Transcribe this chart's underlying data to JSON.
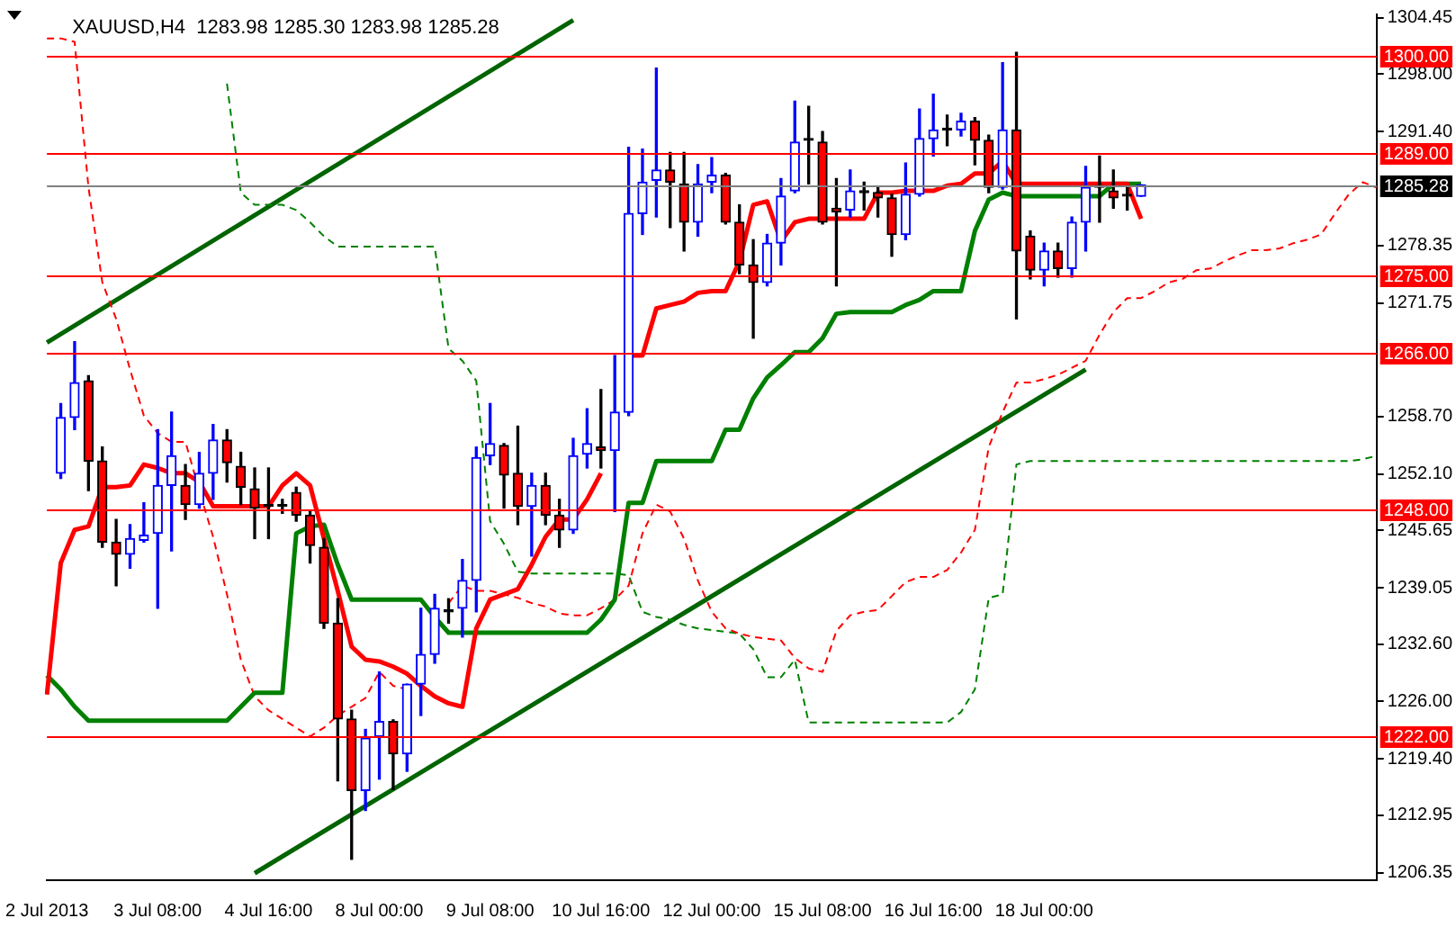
{
  "chart_data": {
    "type": "candlestick",
    "title": "XAUUSD,H4  1283.98 1285.30 1283.98 1285.28",
    "categories": [
      "2 Jul 2013",
      null,
      null,
      null,
      null,
      null,
      null,
      null,
      "3 Jul 08:00",
      null,
      null,
      null,
      null,
      null,
      null,
      null,
      "4 Jul 16:00",
      null,
      null,
      null,
      null,
      null,
      null,
      null,
      "8 Jul 00:00",
      null,
      null,
      null,
      null,
      null,
      null,
      null,
      "9 Jul 08:00",
      null,
      null,
      null,
      null,
      null,
      null,
      null,
      "10 Jul 16:00",
      null,
      null,
      null,
      null,
      null,
      null,
      null,
      "12 Jul 00:00",
      null,
      null,
      null,
      null,
      null,
      null,
      null,
      "15 Jul 08:00",
      null,
      null,
      null,
      null,
      null,
      null,
      null,
      "16 Jul 16:00",
      null,
      null,
      null,
      null,
      null,
      null,
      null,
      "18 Jul 00:00",
      null,
      null,
      null,
      null,
      null,
      null,
      null,
      null,
      null,
      null,
      null,
      null,
      null,
      null,
      null,
      null,
      null,
      null,
      null,
      null,
      null,
      null,
      null,
      null
    ],
    "ohlc": [
      null,
      [
        1252.2,
        1260.2,
        1251.6,
        1258.6
      ],
      [
        1258.6,
        1267.3,
        1257.2,
        1262.6
      ],
      [
        1262.8,
        1263.4,
        1250.2,
        1253.6
      ],
      [
        1253.6,
        1255.2,
        1243.7,
        1244.3
      ],
      [
        1244.3,
        1246.9,
        1239.3,
        1242.9
      ],
      [
        1242.9,
        1246.3,
        1241.3,
        1244.7
      ],
      [
        1244.5,
        1248.8,
        1244.3,
        1245.1
      ],
      [
        1245.3,
        1257.2,
        1236.7,
        1250.8
      ],
      [
        1250.8,
        1259.2,
        1243.3,
        1254.2
      ],
      [
        1250.8,
        1253.2,
        1246.9,
        1248.6
      ],
      [
        1248.6,
        1254.6,
        1248.2,
        1252.2
      ],
      [
        1252.2,
        1257.8,
        1249.2,
        1256.0
      ],
      [
        1256.0,
        1257.2,
        1251.2,
        1253.4
      ],
      [
        1253.0,
        1254.6,
        1248.6,
        1250.6
      ],
      [
        1250.4,
        1252.8,
        1244.7,
        1248.2
      ],
      [
        1248.4,
        1252.8,
        1244.7,
        1248.4
      ],
      [
        1248.4,
        1249.2,
        1247.6,
        1248.4
      ],
      [
        1250.0,
        1250.6,
        1246.7,
        1247.4
      ],
      [
        1247.4,
        1247.8,
        1241.9,
        1243.9
      ],
      [
        1243.7,
        1244.7,
        1234.4,
        1235.0
      ],
      [
        1235.0,
        1237.8,
        1216.9,
        1224.0
      ],
      [
        1224.0,
        1225.0,
        1207.9,
        1215.8
      ],
      [
        1215.8,
        1222.8,
        1213.5,
        1221.8
      ],
      [
        1222.0,
        1229.4,
        1217.1,
        1223.7
      ],
      [
        1223.7,
        1223.9,
        1215.9,
        1220.0
      ],
      [
        1220.0,
        1228.0,
        1218.0,
        1228.0
      ],
      [
        1228.0,
        1236.7,
        1224.4,
        1231.4
      ],
      [
        1231.4,
        1238.3,
        1230.4,
        1236.7
      ],
      [
        1236.3,
        1237.8,
        1235.0,
        1236.3
      ],
      [
        1236.7,
        1242.3,
        1233.4,
        1239.9
      ],
      [
        1239.9,
        1255.2,
        1236.3,
        1254.0
      ],
      [
        1254.2,
        1260.2,
        1253.2,
        1255.6
      ],
      [
        1255.4,
        1255.6,
        1248.2,
        1252.0
      ],
      [
        1252.2,
        1257.6,
        1246.3,
        1248.4
      ],
      [
        1248.4,
        1252.2,
        1242.7,
        1250.8
      ],
      [
        1250.8,
        1252.2,
        1246.3,
        1247.4
      ],
      [
        1247.4,
        1249.2,
        1243.7,
        1245.7
      ],
      [
        1245.7,
        1256.2,
        1245.3,
        1254.2
      ],
      [
        1254.4,
        1259.6,
        1252.8,
        1255.6
      ],
      [
        1255.2,
        1261.8,
        1252.8,
        1254.8
      ],
      [
        1254.8,
        1265.7,
        1247.8,
        1259.2
      ],
      [
        1259.2,
        1289.6,
        1258.8,
        1282.0
      ],
      [
        1282.0,
        1289.4,
        1279.6,
        1285.6
      ],
      [
        1285.8,
        1298.7,
        1281.6,
        1287.0
      ],
      [
        1287.0,
        1289.0,
        1280.4,
        1285.6
      ],
      [
        1285.4,
        1289.0,
        1277.7,
        1281.0
      ],
      [
        1281.0,
        1287.6,
        1279.4,
        1285.4
      ],
      [
        1285.6,
        1288.4,
        1284.4,
        1286.4
      ],
      [
        1286.4,
        1286.6,
        1280.8,
        1281.0
      ],
      [
        1281.0,
        1283.0,
        1275.1,
        1276.1
      ],
      [
        1276.1,
        1279.0,
        1267.7,
        1274.1
      ],
      [
        1274.1,
        1279.6,
        1273.7,
        1278.6
      ],
      [
        1278.6,
        1286.0,
        1276.1,
        1284.0
      ],
      [
        1284.6,
        1294.9,
        1284.4,
        1290.2
      ],
      [
        1290.4,
        1294.3,
        1285.4,
        1290.4
      ],
      [
        1290.2,
        1291.4,
        1280.8,
        1281.0
      ],
      [
        1282.6,
        1286.0,
        1273.7,
        1282.2
      ],
      [
        1282.4,
        1287.0,
        1281.6,
        1284.6
      ],
      [
        1284.4,
        1285.6,
        1282.4,
        1284.4
      ],
      [
        1284.4,
        1285.0,
        1281.6,
        1283.8
      ],
      [
        1283.8,
        1284.2,
        1277.1,
        1279.6
      ],
      [
        1279.6,
        1287.8,
        1279.0,
        1284.2
      ],
      [
        1284.2,
        1294.0,
        1284.0,
        1290.6
      ],
      [
        1290.6,
        1295.7,
        1288.6,
        1291.6
      ],
      [
        1291.6,
        1293.3,
        1289.8,
        1291.6
      ],
      [
        1291.6,
        1293.5,
        1290.9,
        1292.6
      ],
      [
        1292.6,
        1293.0,
        1287.6,
        1290.4
      ],
      [
        1290.4,
        1291.0,
        1284.4,
        1285.0
      ],
      [
        1285.0,
        1299.3,
        1284.8,
        1291.6
      ],
      [
        1291.6,
        1300.5,
        1269.9,
        1277.7
      ],
      [
        1279.4,
        1280.0,
        1274.5,
        1275.5
      ],
      [
        1275.5,
        1278.6,
        1273.7,
        1277.7
      ],
      [
        1277.7,
        1278.6,
        1274.7,
        1275.7
      ],
      [
        1275.7,
        1281.6,
        1274.7,
        1281.0
      ],
      [
        1281.0,
        1287.4,
        1277.7,
        1285.0
      ],
      [
        1285.0,
        1288.6,
        1281.0,
        1285.0
      ],
      [
        1284.6,
        1287.0,
        1282.6,
        1283.8
      ],
      [
        1284.0,
        1285.0,
        1282.4,
        1284.0
      ],
      [
        1283.98,
        1285.3,
        1283.98,
        1285.28
      ],
      null,
      null,
      null,
      null,
      null,
      null,
      null,
      null,
      null,
      null,
      null,
      null,
      null,
      null,
      null,
      null,
      null
    ],
    "series": [
      {
        "type": "line",
        "color": "#ff0000",
        "line_style": "solid",
        "values": [
          1226.8,
          1241.9,
          1245.7,
          1246.1,
          1250.6,
          1250.6,
          1250.8,
          1253.2,
          1252.8,
          1252.2,
          1252.2,
          1251.2,
          1248.4,
          1248.4,
          1248.4,
          1248.4,
          1248.4,
          1250.8,
          1252.2,
          1250.8,
          1244.7,
          1238.7,
          1232.3,
          1230.8,
          1230.6,
          1230.0,
          1229.2,
          1227.8,
          1226.6,
          1225.8,
          1225.4,
          1234.4,
          1237.7,
          1238.3,
          1238.9,
          1241.7,
          1244.9,
          1246.9,
          1246.9,
          1249.2,
          1252.2,
          null,
          1265.7,
          1265.7,
          1271.1,
          1271.5,
          1271.9,
          1272.9,
          1273.1,
          1273.1,
          1276.5,
          1283.0,
          1283.4,
          1278.8,
          1281.0,
          1281.4,
          1281.4,
          1281.4,
          1281.4,
          1281.4,
          1284.4,
          1284.4,
          1284.6,
          1284.6,
          1284.6,
          1285.2,
          1285.4,
          1286.6,
          1286.6,
          1288.0,
          1285.4,
          1285.4,
          1285.4,
          1285.4,
          1285.4,
          1285.4,
          1285.4,
          1285.4,
          1285.4,
          1281.4,
          null,
          null,
          null,
          null,
          null,
          null,
          null,
          null,
          null,
          null,
          null,
          null,
          null,
          null,
          null,
          null,
          null
        ]
      },
      {
        "type": "line",
        "color": "#008000",
        "line_style": "solid",
        "values": [
          1229.0,
          1227.4,
          1225.4,
          1223.8,
          1223.8,
          1223.8,
          1223.8,
          1223.8,
          1223.8,
          1223.8,
          1223.8,
          1223.8,
          1223.8,
          1223.8,
          1225.4,
          1227.0,
          1227.0,
          1227.0,
          1245.3,
          1246.1,
          1246.3,
          1241.7,
          1237.7,
          1237.7,
          1237.7,
          1237.7,
          1237.7,
          1237.7,
          1235.7,
          1233.9,
          1233.9,
          1233.9,
          1233.9,
          1233.9,
          1233.9,
          1233.9,
          1233.9,
          1233.9,
          1233.9,
          1233.9,
          1235.4,
          1237.7,
          1248.8,
          1248.8,
          1253.6,
          1253.6,
          1253.6,
          1253.6,
          1253.6,
          1257.2,
          1257.2,
          1260.8,
          1263.2,
          1264.6,
          1266.1,
          1266.1,
          1267.7,
          1270.5,
          1270.7,
          1270.7,
          1270.7,
          1270.7,
          1271.5,
          1272.1,
          1273.1,
          1273.1,
          1273.1,
          1280.0,
          1283.6,
          1284.4,
          1284.0,
          1284.0,
          1284.0,
          1284.0,
          1284.0,
          1284.0,
          1284.0,
          1285.4,
          1285.4,
          1285.4,
          null,
          null,
          null,
          null,
          null,
          null,
          null,
          null,
          null,
          null,
          null,
          null,
          null,
          null,
          null,
          null,
          null
        ]
      },
      {
        "type": "line",
        "color": "#ff0000",
        "line_style": "dashed",
        "values": [
          1302.1,
          1302.1,
          1301.7,
          1285.0,
          1274.1,
          1269.9,
          1264.1,
          1258.8,
          1256.8,
          1255.8,
          1255.8,
          1250.2,
          1244.9,
          1238.3,
          1230.8,
          1226.6,
          1225.0,
          1224.0,
          1223.0,
          1222.0,
          1223.0,
          1224.4,
          1225.4,
          1226.4,
          1229.4,
          1227.8,
          1227.4,
          null,
          null,
          1237.3,
          1239.3,
          1238.7,
          1238.7,
          1238.3,
          1237.9,
          1237.3,
          1236.9,
          1236.1,
          1235.9,
          1235.9,
          1236.7,
          1237.7,
          1239.3,
          1245.3,
          1248.6,
          1247.8,
          1244.7,
          1239.9,
          1236.3,
          1234.4,
          1233.8,
          1233.4,
          1233.2,
          1233.0,
          1231.0,
          1229.8,
          1229.4,
          1234.1,
          1235.9,
          1236.3,
          1236.5,
          1238.1,
          1239.7,
          1240.3,
          1240.3,
          1241.1,
          1243.1,
          1245.7,
          1255.2,
          1259.2,
          1262.6,
          1262.6,
          1263.0,
          1263.5,
          1264.3,
          1265.1,
          1268.1,
          1270.7,
          1272.3,
          1272.3,
          1273.1,
          1274.1,
          1274.5,
          1275.5,
          1275.7,
          1276.5,
          1277.2,
          1277.8,
          1277.8,
          1278.0,
          1278.6,
          1279.0,
          1279.6,
          1282.0,
          1284.2,
          1285.6,
          1285.0
        ]
      },
      {
        "type": "line",
        "color": "#008000",
        "line_style": "dashed",
        "values": [
          null,
          null,
          null,
          null,
          null,
          null,
          null,
          null,
          null,
          null,
          null,
          null,
          null,
          1296.9,
          1284.4,
          1283.0,
          1283.0,
          1283.0,
          1282.4,
          1281.0,
          1279.4,
          1278.2,
          1278.2,
          1278.2,
          1278.2,
          1278.2,
          1278.2,
          1278.2,
          1278.2,
          1266.5,
          1265.1,
          1262.8,
          1246.7,
          1244.1,
          1240.9,
          1240.7,
          1240.7,
          1240.7,
          1240.7,
          1240.7,
          1240.7,
          1240.7,
          1240.5,
          1236.3,
          1235.7,
          1235.4,
          1234.8,
          1234.4,
          1234.2,
          1234.0,
          1233.8,
          1232.0,
          1228.8,
          1228.8,
          1230.8,
          1223.6,
          1223.6,
          1223.6,
          1223.6,
          1223.6,
          1223.6,
          1223.6,
          1223.6,
          1223.6,
          1223.6,
          1223.6,
          1224.8,
          1227.4,
          1237.9,
          1238.3,
          1253.2,
          1253.6,
          1253.6,
          1253.6,
          1253.6,
          1253.6,
          1253.6,
          1253.6,
          1253.6,
          1253.6,
          1253.6,
          1253.6,
          1253.6,
          1253.6,
          1253.6,
          1253.6,
          1253.6,
          1253.6,
          1253.6,
          1253.6,
          1253.6,
          1253.6,
          1253.6,
          1253.6,
          1253.6,
          1253.8,
          1254.2
        ]
      },
      {
        "type": "line",
        "color": "#006400",
        "line_style": "solid",
        "values": [
          1267.2,
          null,
          null,
          null,
          null,
          null,
          null,
          null,
          null,
          null,
          null,
          null,
          null,
          null,
          null,
          null,
          null,
          null,
          null,
          null,
          null,
          null,
          null,
          null,
          null,
          null,
          null,
          null,
          null,
          null,
          null,
          null,
          null,
          null,
          null,
          null,
          null,
          null,
          1304.2,
          null,
          null,
          null,
          null,
          null,
          null,
          null,
          null,
          null,
          null,
          null,
          null,
          null,
          null,
          null,
          null,
          null,
          null,
          null,
          null,
          null,
          null,
          null,
          null,
          null,
          null,
          null,
          null,
          null,
          null,
          null,
          null,
          null,
          null,
          null,
          null,
          null,
          null,
          null,
          null,
          null,
          null,
          null,
          null,
          null,
          null,
          null,
          null,
          null,
          null,
          null,
          null,
          null,
          null,
          null,
          null,
          null,
          null
        ]
      },
      {
        "type": "line",
        "color": "#006400",
        "line_style": "solid",
        "values": [
          null,
          null,
          null,
          null,
          null,
          null,
          null,
          null,
          null,
          null,
          null,
          null,
          null,
          null,
          null,
          1206.3,
          null,
          null,
          null,
          null,
          null,
          null,
          null,
          null,
          null,
          null,
          null,
          null,
          null,
          null,
          null,
          null,
          null,
          null,
          null,
          null,
          null,
          null,
          null,
          null,
          null,
          null,
          null,
          null,
          null,
          null,
          null,
          null,
          null,
          null,
          null,
          null,
          null,
          null,
          null,
          null,
          null,
          null,
          null,
          null,
          null,
          null,
          null,
          null,
          null,
          null,
          null,
          null,
          null,
          null,
          null,
          null,
          null,
          null,
          null,
          1264.1,
          null,
          null,
          null,
          null,
          null,
          null,
          null,
          null,
          null,
          null,
          null,
          null,
          null,
          null,
          null,
          null,
          null,
          null,
          null,
          null,
          null
        ]
      }
    ],
    "ylim": [
      1205.5,
      1304.85
    ],
    "yticks": [
      1304.45,
      {
        "value": 1298,
        "label": "1298.00"
      },
      {
        "value": 1291.4,
        "label": "1291.40"
      },
      1278.35,
      1271.75,
      {
        "value": 1258.7,
        "label": "1258.70"
      },
      {
        "value": 1252.1,
        "label": "1252.10"
      },
      1245.65,
      1239.05,
      {
        "value": 1232.6,
        "label": "1232.60"
      },
      {
        "value": 1226,
        "label": "1226.00"
      },
      {
        "value": 1219.4,
        "label": "1219.40"
      },
      1212.95,
      1206.35
    ],
    "ref_lines": [
      {
        "axis": "y",
        "value": 1300,
        "label": "1300.00",
        "color": "#ff0000"
      },
      {
        "axis": "y",
        "value": 1289,
        "label": "1289.00",
        "color": "#ff0000"
      },
      {
        "axis": "y",
        "value": 1285.28,
        "label": "1285.28",
        "color": "#808080"
      },
      {
        "axis": "y",
        "value": 1275,
        "label": "1275.00",
        "color": "#ff0000"
      },
      {
        "axis": "y",
        "value": 1266,
        "label": "1266.00",
        "color": "#ff0000"
      },
      {
        "axis": "y",
        "value": 1248,
        "label": "1248.00",
        "color": "#ff0000"
      },
      {
        "axis": "y",
        "value": 1222,
        "label": "1222.00",
        "color": "#ff0000"
      }
    ],
    "grid": false,
    "legend": false,
    "marker": "none"
  }
}
